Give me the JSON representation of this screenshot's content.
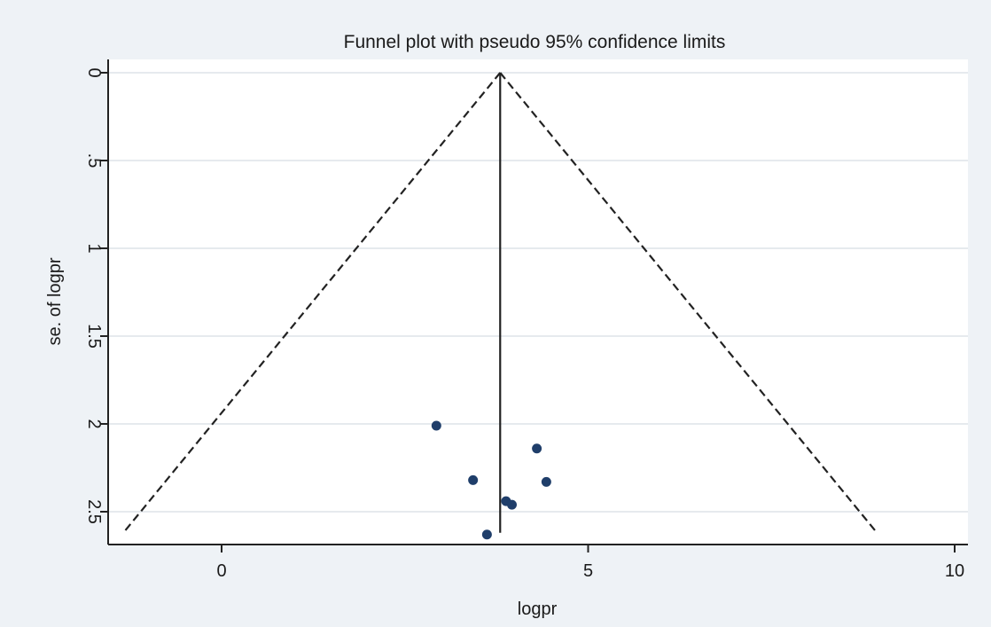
{
  "chart_data": {
    "type": "scatter",
    "title": "Funnel plot with pseudo 95% confidence limits",
    "xlabel": "logpr",
    "ylabel": "se. of logpr",
    "x_ticks": [
      0,
      5,
      10
    ],
    "x_tick_labels": [
      "0",
      "5",
      "10"
    ],
    "y_ticks": [
      0,
      0.5,
      1,
      1.5,
      2,
      2.5
    ],
    "y_tick_labels": [
      "0",
      ".5",
      "1",
      "1.5",
      "2",
      "2.5"
    ],
    "xlim": [
      -1.5,
      10.2
    ],
    "ylim": [
      0,
      2.7
    ],
    "y_reversed": true,
    "grid": true,
    "pooled_estimate": 3.8,
    "se_max": 2.62,
    "confidence_limits": [
      {
        "se": 0,
        "lower": 3.8,
        "upper": 3.8
      },
      {
        "se": 2.62,
        "lower": -1.34,
        "upper": 8.94
      }
    ],
    "points": [
      {
        "x": 2.93,
        "y": 2.01
      },
      {
        "x": 3.43,
        "y": 2.32
      },
      {
        "x": 3.62,
        "y": 2.63
      },
      {
        "x": 3.88,
        "y": 2.44
      },
      {
        "x": 3.96,
        "y": 2.46
      },
      {
        "x": 4.3,
        "y": 2.14
      },
      {
        "x": 4.43,
        "y": 2.33
      }
    ],
    "colors": {
      "marker": "#1f3e6a",
      "plot_background": "#ffffff",
      "outer_background": "#eef2f6",
      "grid": "#e6eaee",
      "line": "#222222"
    }
  }
}
